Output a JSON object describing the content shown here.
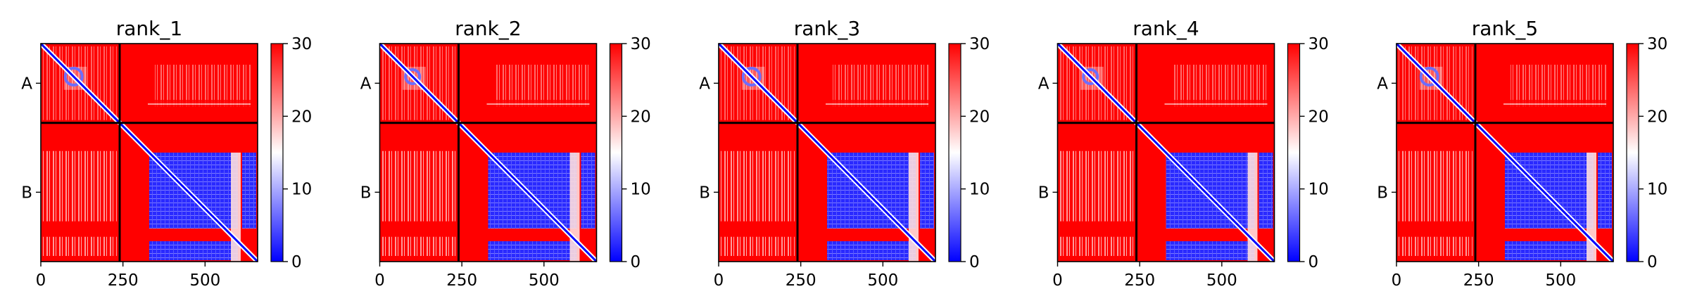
{
  "chart_data": [
    {
      "type": "heatmap",
      "title": "rank_1",
      "x_ticks": [
        0,
        250,
        500
      ],
      "y_tick_labels": [
        "A",
        "B"
      ],
      "chain_boundary": 240,
      "sequence_length": 660,
      "colorbar": {
        "min": 0,
        "max": 30,
        "ticks": [
          0,
          10,
          20,
          30
        ],
        "colormap": "bwr"
      },
      "colors": {
        "low": "#0000ff",
        "mid": "#ffffff",
        "high": "#ff0000"
      }
    },
    {
      "type": "heatmap",
      "title": "rank_2",
      "x_ticks": [
        0,
        250,
        500
      ],
      "y_tick_labels": [
        "A",
        "B"
      ],
      "chain_boundary": 240,
      "sequence_length": 660,
      "colorbar": {
        "min": 0,
        "max": 30,
        "ticks": [
          0,
          10,
          20,
          30
        ],
        "colormap": "bwr"
      },
      "colors": {
        "low": "#0000ff",
        "mid": "#ffffff",
        "high": "#ff0000"
      }
    },
    {
      "type": "heatmap",
      "title": "rank_3",
      "x_ticks": [
        0,
        250,
        500
      ],
      "y_tick_labels": [
        "A",
        "B"
      ],
      "chain_boundary": 240,
      "sequence_length": 660,
      "colorbar": {
        "min": 0,
        "max": 30,
        "ticks": [
          0,
          10,
          20,
          30
        ],
        "colormap": "bwr"
      },
      "colors": {
        "low": "#0000ff",
        "mid": "#ffffff",
        "high": "#ff0000"
      }
    },
    {
      "type": "heatmap",
      "title": "rank_4",
      "x_ticks": [
        0,
        250,
        500
      ],
      "y_tick_labels": [
        "A",
        "B"
      ],
      "chain_boundary": 240,
      "sequence_length": 660,
      "colorbar": {
        "min": 0,
        "max": 30,
        "ticks": [
          0,
          10,
          20,
          30
        ],
        "colormap": "bwr"
      },
      "colors": {
        "low": "#0000ff",
        "mid": "#ffffff",
        "high": "#ff0000"
      }
    },
    {
      "type": "heatmap",
      "title": "rank_5",
      "x_ticks": [
        0,
        250,
        500
      ],
      "y_tick_labels": [
        "A",
        "B"
      ],
      "chain_boundary": 240,
      "sequence_length": 660,
      "colorbar": {
        "min": 0,
        "max": 30,
        "ticks": [
          0,
          10,
          20,
          30
        ],
        "colormap": "bwr"
      },
      "colors": {
        "low": "#0000ff",
        "mid": "#ffffff",
        "high": "#ff0000"
      }
    }
  ]
}
